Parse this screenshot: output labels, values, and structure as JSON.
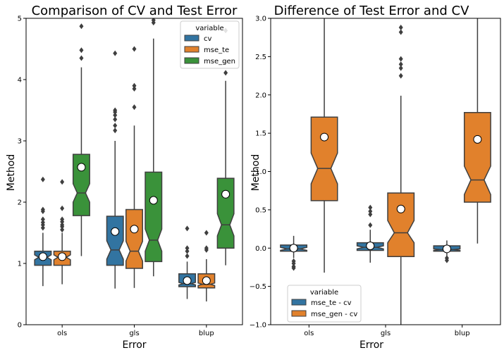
{
  "colors": {
    "cv": "#3274a1",
    "mse_te": "#e1812c",
    "mse_gen": "#3a923a",
    "line": "#3f3f3f",
    "mean_marker": "#ffffff"
  },
  "chart_data": [
    {
      "type": "boxplot",
      "title": "Comparison of CV and Test Error",
      "xlabel": "Error",
      "ylabel": "Method",
      "categories": [
        "ols",
        "gls",
        "blup"
      ],
      "ylim": [
        0,
        5
      ],
      "yticks": [
        "0",
        "1",
        "2",
        "3",
        "4",
        "5"
      ],
      "legend": {
        "title": "variable",
        "position": "top-right",
        "entries": [
          "cv",
          "mse_te",
          "mse_gen"
        ]
      },
      "series": [
        {
          "name": "cv",
          "color_key": "cv",
          "boxes": [
            {
              "whislo": 0.63,
              "q1": 0.97,
              "notchlo": 1.06,
              "med": 1.1,
              "notchhi": 1.14,
              "q3": 1.2,
              "whishi": 1.5,
              "mean": 1.11,
              "fliers": [
                1.58,
                1.63,
                1.67,
                1.72,
                1.85,
                1.88,
                2.37
              ]
            },
            {
              "whislo": 0.59,
              "q1": 0.97,
              "notchlo": 1.07,
              "med": 1.22,
              "notchhi": 1.37,
              "q3": 1.77,
              "whishi": 3.0,
              "mean": 1.52,
              "fliers": [
                3.17,
                3.25,
                3.35,
                3.42,
                3.47,
                3.5,
                4.43
              ]
            },
            {
              "whislo": 0.42,
              "q1": 0.62,
              "notchlo": 0.65,
              "med": 0.67,
              "notchhi": 0.69,
              "q3": 0.83,
              "whishi": 1.03,
              "mean": 0.72,
              "fliers": [
                1.12,
                1.2,
                1.25,
                1.57
              ]
            }
          ]
        },
        {
          "name": "mse_te",
          "color_key": "mse_te",
          "boxes": [
            {
              "whislo": 0.66,
              "q1": 0.97,
              "notchlo": 1.06,
              "med": 1.1,
              "notchhi": 1.14,
              "q3": 1.2,
              "whishi": 1.5,
              "mean": 1.11,
              "fliers": [
                1.55,
                1.6,
                1.63,
                1.68,
                1.72,
                1.9,
                2.33
              ]
            },
            {
              "whislo": 0.6,
              "q1": 0.92,
              "notchlo": 1.04,
              "med": 1.2,
              "notchhi": 1.36,
              "q3": 1.88,
              "whishi": 3.25,
              "mean": 1.56,
              "fliers": [
                3.55,
                3.85,
                3.9,
                4.5
              ]
            },
            {
              "whislo": 0.38,
              "q1": 0.6,
              "notchlo": 0.64,
              "med": 0.66,
              "notchhi": 0.68,
              "q3": 0.83,
              "whishi": 1.07,
              "mean": 0.72,
              "fliers": [
                1.22,
                1.25,
                1.5
              ]
            }
          ]
        },
        {
          "name": "mse_gen",
          "color_key": "mse_gen",
          "boxes": [
            {
              "whislo": 1.12,
              "q1": 1.78,
              "notchlo": 2.0,
              "med": 2.15,
              "notchhi": 2.3,
              "q3": 2.78,
              "whishi": 4.2,
              "mean": 2.57,
              "fliers": [
                4.35,
                4.48,
                4.87
              ]
            },
            {
              "whislo": 0.79,
              "q1": 1.03,
              "notchlo": 1.2,
              "med": 1.38,
              "notchhi": 1.56,
              "q3": 2.49,
              "whishi": 4.67,
              "mean": 2.03,
              "fliers": [
                4.93,
                4.97
              ]
            },
            {
              "whislo": 0.97,
              "q1": 1.25,
              "notchlo": 1.45,
              "med": 1.63,
              "notchhi": 1.81,
              "q3": 2.39,
              "whishi": 3.98,
              "mean": 2.13,
              "fliers": [
                4.11,
                4.28,
                4.8
              ]
            }
          ]
        }
      ]
    },
    {
      "type": "boxplot",
      "title": "Difference of Test Error and CV",
      "xlabel": "Error",
      "ylabel": "Method",
      "categories": [
        "ols",
        "gls",
        "blup"
      ],
      "ylim": [
        -1.0,
        3.0
      ],
      "yticks": [
        "−1.0",
        "−0.5",
        "0.0",
        "0.5",
        "1.0",
        "1.5",
        "2.0",
        "2.5",
        "3.0"
      ],
      "legend": {
        "title": "variable",
        "position": "bottom-left",
        "entries": [
          "mse_te - cv",
          "mse_gen - cv"
        ]
      },
      "series": [
        {
          "name": "mse_te - cv",
          "color_key": "cv",
          "boxes": [
            {
              "whislo": -0.13,
              "q1": -0.04,
              "notchlo": -0.03,
              "med": -0.01,
              "notchhi": 0.01,
              "q3": 0.04,
              "whishi": 0.16,
              "mean": 0.0,
              "fliers": [
                -0.17,
                -0.2,
                -0.24,
                -0.26
              ]
            },
            {
              "whislo": -0.19,
              "q1": -0.03,
              "notchlo": -0.01,
              "med": 0.01,
              "notchhi": 0.03,
              "q3": 0.07,
              "whishi": 0.24,
              "mean": 0.03,
              "fliers": [
                0.3,
                0.44,
                0.48,
                0.53
              ]
            },
            {
              "whislo": -0.11,
              "q1": -0.04,
              "notchlo": -0.03,
              "med": -0.02,
              "notchhi": -0.01,
              "q3": 0.03,
              "whishi": 0.1,
              "mean": -0.01,
              "fliers": [
                -0.13,
                -0.16
              ]
            }
          ]
        },
        {
          "name": "mse_gen - cv",
          "color_key": "mse_te",
          "boxes": [
            {
              "whislo": -0.32,
              "q1": 0.62,
              "notchlo": 0.84,
              "med": 1.04,
              "notchhi": 1.24,
              "q3": 1.71,
              "whishi": 3.3,
              "mean": 1.45,
              "fliers": []
            },
            {
              "whislo": -1.3,
              "q1": -0.11,
              "notchlo": 0.07,
              "med": 0.2,
              "notchhi": 0.36,
              "q3": 0.72,
              "whishi": 1.99,
              "mean": 0.51,
              "fliers": [
                2.25,
                2.35,
                2.4,
                2.47,
                2.82,
                2.88
              ]
            },
            {
              "whislo": 0.06,
              "q1": 0.6,
              "notchlo": 0.7,
              "med": 0.89,
              "notchhi": 1.07,
              "q3": 1.77,
              "whishi": 3.3,
              "mean": 1.42,
              "fliers": []
            }
          ]
        }
      ]
    }
  ]
}
